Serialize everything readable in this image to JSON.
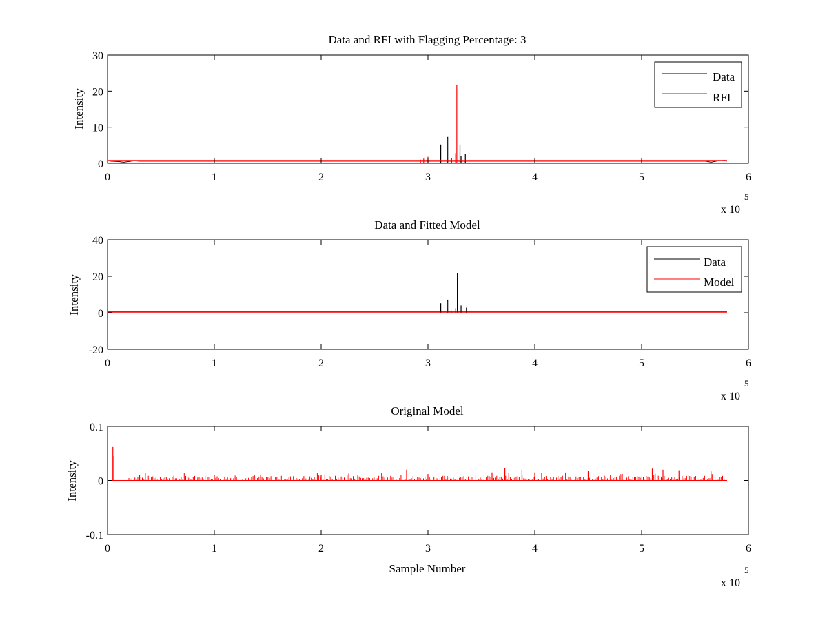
{
  "figure": {
    "background": "#ffffff"
  },
  "chart_data": [
    {
      "type": "line",
      "title": "Data and RFI with Flagging Percentage: 3",
      "xlabel": "",
      "ylabel": "Intensity",
      "xlim": [
        0,
        600000
      ],
      "ylim": [
        0,
        30
      ],
      "x_ticks": [
        0,
        1,
        2,
        3,
        4,
        5,
        6
      ],
      "y_ticks": [
        0,
        10,
        20,
        30
      ],
      "x_exponent_label": "x 10",
      "x_exponent": "5",
      "legend": {
        "position": "top-right",
        "entries": [
          "Data",
          "RFI"
        ]
      },
      "series": [
        {
          "name": "Data",
          "color": "#000000",
          "baseline": [
            [
              0,
              0.8
            ],
            [
              3000,
              0.6
            ],
            [
              10000,
              0.5
            ],
            [
              15000,
              0.3
            ],
            [
              20000,
              0.5
            ],
            [
              25000,
              0.7
            ],
            [
              30000,
              0.6
            ],
            [
              560000,
              0.6
            ],
            [
              565000,
              0.3
            ],
            [
              572000,
              0.7
            ],
            [
              578000,
              0.8
            ],
            [
              580000,
              0.6
            ]
          ],
          "spikes": [
            [
              312000,
              5.2
            ],
            [
              318000,
              6.5
            ],
            [
              318500,
              7.3
            ],
            [
              322000,
              1.5
            ],
            [
              326000,
              2.8
            ],
            [
              330000,
              5.2
            ],
            [
              331000,
              2.0
            ],
            [
              335000,
              2.5
            ]
          ]
        },
        {
          "name": "RFI",
          "color": "#ff0000",
          "baseline": [
            [
              0,
              0.8
            ],
            [
              580000,
              0.8
            ]
          ],
          "spikes": [
            [
              293000,
              1.0
            ],
            [
              296000,
              1.3
            ],
            [
              300000,
              1.8
            ],
            [
              318000,
              7.0
            ],
            [
              327000,
              21.8
            ]
          ]
        }
      ]
    },
    {
      "type": "line",
      "title": "Data and Fitted Model",
      "xlabel": "",
      "ylabel": "Intensity",
      "xlim": [
        0,
        600000
      ],
      "ylim": [
        -20,
        40
      ],
      "x_ticks": [
        0,
        1,
        2,
        3,
        4,
        5,
        6
      ],
      "y_ticks": [
        -20,
        0,
        20,
        40
      ],
      "x_exponent_label": "x 10",
      "x_exponent": "5",
      "legend": {
        "position": "top-right",
        "entries": [
          "Data",
          "Model"
        ]
      },
      "series": [
        {
          "name": "Data",
          "color": "#000000",
          "baseline": [
            [
              0,
              0.5
            ],
            [
              580000,
              0.5
            ]
          ],
          "spikes": [
            [
              312000,
              5.2
            ],
            [
              318000,
              6.8
            ],
            [
              318500,
              7.2
            ],
            [
              326000,
              2.5
            ],
            [
              327500,
              21.8
            ],
            [
              331000,
              4.0
            ],
            [
              336000,
              2.8
            ]
          ]
        },
        {
          "name": "Model",
          "color": "#ff0000",
          "baseline": [
            [
              0,
              0.3
            ],
            [
              580000,
              0.3
            ]
          ],
          "spikes": [
            [
              318000,
              6.5
            ],
            [
              322000,
              1.2
            ],
            [
              328000,
              1.5
            ]
          ]
        }
      ]
    },
    {
      "type": "line",
      "title": "Original Model",
      "xlabel": "Sample Number",
      "ylabel": "Intensity",
      "xlim": [
        0,
        600000
      ],
      "ylim": [
        -0.1,
        0.1
      ],
      "x_ticks": [
        0,
        1,
        2,
        3,
        4,
        5,
        6
      ],
      "y_ticks": [
        -0.1,
        0,
        0.1
      ],
      "y_tick_labels": [
        "-0.1",
        "0",
        "0.1"
      ],
      "x_exponent_label": "x 10",
      "x_exponent": "5",
      "series": [
        {
          "name": "",
          "color": "#ff0000",
          "baseline": [
            [
              0,
              0.0
            ],
            [
              580000,
              0.0
            ]
          ],
          "spikes": [
            [
              5000,
              0.062
            ],
            [
              6000,
              0.045
            ],
            [
              30000,
              0.01
            ],
            [
              100000,
              0.01
            ],
            [
              200000,
              0.01
            ],
            [
              280000,
              0.02
            ],
            [
              300000,
              0.012
            ],
            [
              360000,
              0.015
            ],
            [
              372000,
              0.023
            ],
            [
              388000,
              0.02
            ],
            [
              400000,
              0.015
            ],
            [
              450000,
              0.018
            ],
            [
              510000,
              0.022
            ],
            [
              520000,
              0.02
            ],
            [
              535000,
              0.019
            ],
            [
              565000,
              0.017
            ]
          ]
        }
      ]
    }
  ]
}
